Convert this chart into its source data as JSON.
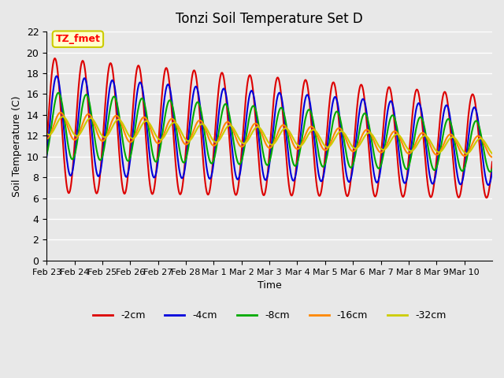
{
  "title": "Tonzi Soil Temperature Set D",
  "xlabel": "Time",
  "ylabel": "Soil Temperature (C)",
  "annotation": "TZ_fmet",
  "annotation_bg": "#ffffcc",
  "annotation_border": "#cccc00",
  "ylim": [
    0,
    22
  ],
  "bg_color": "#e8e8e8",
  "plot_bg": "#e8e8e8",
  "series_colors": [
    "#dd0000",
    "#0000dd",
    "#00aa00",
    "#ff8800",
    "#cccc00"
  ],
  "series_labels": [
    "-2cm",
    "-4cm",
    "-8cm",
    "-16cm",
    "-32cm"
  ],
  "tick_labels": [
    "Feb 23",
    "Feb 24",
    "Feb 25",
    "Feb 26",
    "Feb 27",
    "Feb 28",
    "Mar 1",
    "Mar 2",
    "Mar 3",
    "Mar 4",
    "Mar 5",
    "Mar 6",
    "Mar 7",
    "Mar 8",
    "Mar 9",
    "Mar 10"
  ],
  "n_days": 16,
  "points_per_day": 48
}
